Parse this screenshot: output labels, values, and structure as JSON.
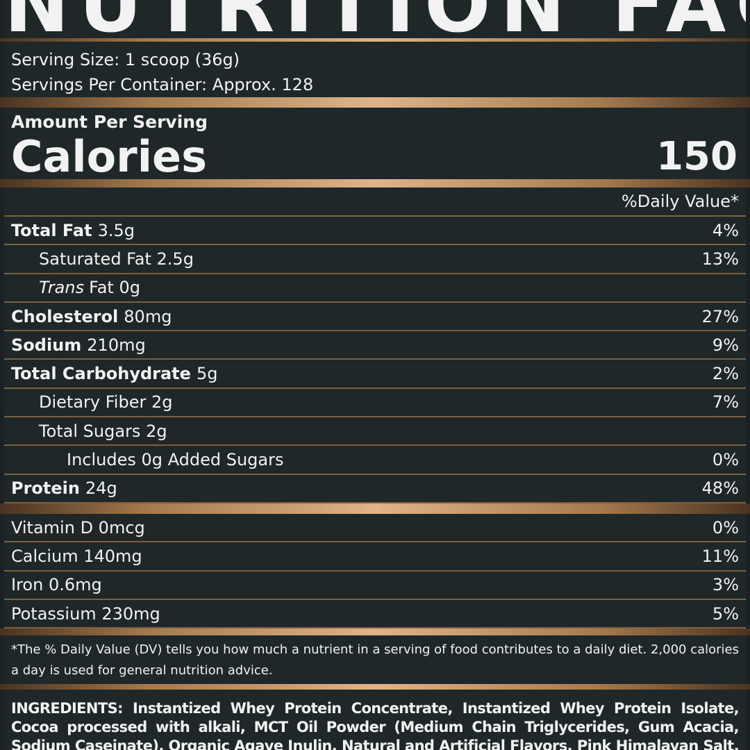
{
  "title": "NUTRITION FACTS",
  "serving": {
    "size": "Serving Size: 1 scoop (36g)",
    "per_container": "Servings Per Container: Approx. 128"
  },
  "amount_per_serving": "Amount Per Serving",
  "calories": {
    "label": "Calories",
    "value": "150"
  },
  "daily_value_header": "%Daily Value*",
  "nutrients": [
    {
      "name": "Total Fat",
      "amount": "3.5g",
      "dv": "4%",
      "bold": true,
      "level": 0
    },
    {
      "name": "Saturated Fat 2.5g",
      "dv": "13%",
      "level": 1
    },
    {
      "italic": "Trans",
      "name": "Fat 0g",
      "level": 1
    },
    {
      "name": "Cholesterol",
      "amount": "80mg",
      "dv": "27%",
      "bold": true,
      "level": 0
    },
    {
      "name": "Sodium",
      "amount": "210mg",
      "dv": "9%",
      "bold": true,
      "level": 0
    },
    {
      "name": "Total Carbohydrate",
      "amount": "5g",
      "dv": "2%",
      "bold": true,
      "level": 0
    },
    {
      "name": "Dietary Fiber 2g",
      "dv": "7%",
      "level": 1
    },
    {
      "name": "Total Sugars 2g",
      "level": 1
    },
    {
      "name": "Includes 0g Added Sugars",
      "dv": "0%",
      "level": 2
    },
    {
      "name": "Protein",
      "amount": "24g",
      "dv": "48%",
      "bold": true,
      "level": 0
    }
  ],
  "vitamins": [
    {
      "name": "Vitamin D 0mcg",
      "dv": "0%"
    },
    {
      "name": "Calcium 140mg",
      "dv": "11%"
    },
    {
      "name": "Iron 0.6mg",
      "dv": "3%"
    },
    {
      "name": "Potassium 230mg",
      "dv": "5%"
    }
  ],
  "footnote": "*The % Daily Value (DV) tells you how much a nutrient in a serving of food contributes to a daily diet. 2,000 calories a day is used for general nutrition advice.",
  "ingredients": {
    "label": "INGREDIENTS:",
    "text": "Instantized Whey Protein Concentrate, Instantized Whey Protein Isolate, Cocoa processed with alkali, MCT Oil Powder (Medium Chain Triglycerides, Gum Acacia, Sodium Caseinate), Organic Agave Inulin, Natural and Artificial Flavors, Pink Himalayan Salt, Xanthan"
  }
}
